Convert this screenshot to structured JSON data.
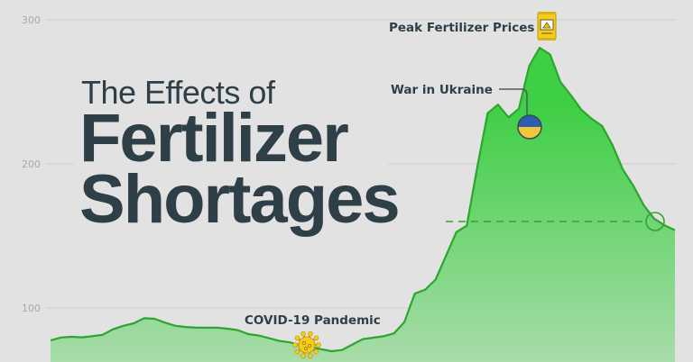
{
  "title": {
    "line1": "The Effects of",
    "line2": "Fertilizer",
    "line3": "Shortages"
  },
  "chart_data": {
    "type": "area",
    "title": "The Effects of Fertilizer Shortages",
    "xlabel": "",
    "ylabel": "",
    "ylim": [
      50,
      310
    ],
    "yticks": [
      "100",
      "200",
      "300"
    ],
    "ytick_values": [
      100,
      200,
      300
    ],
    "grid": true,
    "values": [
      77.5,
      79.5,
      80,
      79.6,
      80.4,
      81.4,
      85.2,
      87.6,
      89.4,
      92.9,
      92.5,
      89.8,
      87.6,
      86.8,
      86.3,
      86.3,
      86.3,
      85.6,
      84.6,
      81.9,
      80.9,
      79,
      77.1,
      76.1,
      74.2,
      73,
      71.4,
      70,
      70.8,
      74.6,
      78.4,
      79.4,
      80.4,
      82.4,
      90.2,
      110,
      112.7,
      119.7,
      136.2,
      152.7,
      157.1,
      197.5,
      235.2,
      241.1,
      232.3,
      238.3,
      268,
      280.6,
      276,
      256.8,
      247.6,
      237.6,
      231.3,
      226.3,
      213,
      196,
      184.8,
      171.3,
      162,
      157.4,
      154
    ],
    "reference_line": {
      "value": 160,
      "style": "dashed"
    },
    "annotations": [
      {
        "label": "Peak Fertilizer Prices",
        "index": 47,
        "icon": "fertilizer-bag-icon"
      },
      {
        "label": "War in Ukraine",
        "index": 46,
        "icon": "ukraine-flag-icon"
      },
      {
        "label": "COVID-19 Pandemic",
        "index": 25,
        "icon": "virus-icon"
      }
    ],
    "colors": {
      "line": "#2ea52f",
      "fill_top": "#3fcf45",
      "fill_bottom": "#a8dcaa",
      "background": "#e2e2e2",
      "grid": "#cfcfcf",
      "title": "#2e3f47",
      "accent": "#f5cc1d",
      "flag_blue": "#2c5fae",
      "flag_yellow": "#f3c63a"
    }
  }
}
